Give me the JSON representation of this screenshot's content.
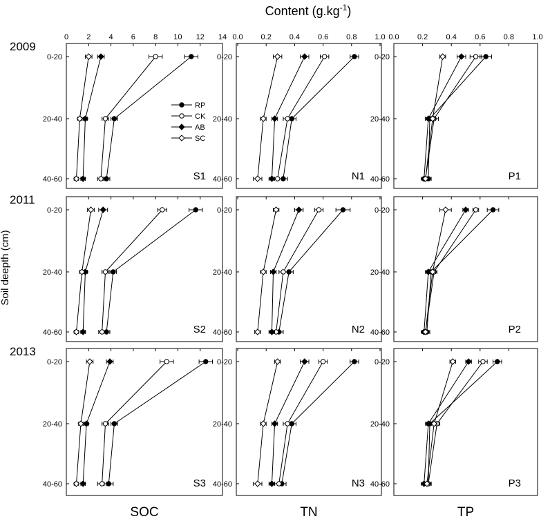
{
  "chart_data": {
    "type": "line",
    "title": "Content (g.kg",
    "title_sup": "-1",
    "ylabel": "Soil deepth (cm)",
    "depths": [
      "0-20",
      "20-40",
      "40-60"
    ],
    "columns": [
      {
        "name": "SOC",
        "xlim": [
          0,
          14
        ],
        "ticks": [
          "0",
          "2",
          "4",
          "6",
          "8",
          "10",
          "12",
          "14"
        ]
      },
      {
        "name": "TN",
        "xlim": [
          0,
          1.0
        ],
        "ticks": [
          "0.0",
          "0.2",
          "0.4",
          "0.6",
          "0.8",
          "1.0"
        ]
      },
      {
        "name": "TP",
        "xlim": [
          0,
          1.0
        ],
        "ticks": [
          "0.0",
          "0.2",
          "0.4",
          "0.6",
          "0.8",
          "1.0"
        ]
      }
    ],
    "years": [
      "2009",
      "2011",
      "2013"
    ],
    "legend": {
      "entries": [
        "RP",
        "CK",
        "AB",
        "SC"
      ],
      "placement": "inside top-right of S1"
    },
    "series_styles": [
      {
        "name": "RP",
        "marker": "circle",
        "fill": "#000000"
      },
      {
        "name": "CK",
        "marker": "circle",
        "fill": "#ffffff"
      },
      {
        "name": "AB",
        "marker": "diamond",
        "fill": "#000000"
      },
      {
        "name": "SC",
        "marker": "diamond",
        "fill": "#ffffff"
      }
    ],
    "panels": [
      {
        "label": "S1",
        "row": 0,
        "col": 0,
        "series": {
          "RP": {
            "x": [
              11.2,
              4.3,
              3.6
            ],
            "err": [
              0.6,
              0.3,
              0.3
            ]
          },
          "CK": {
            "x": [
              8.0,
              3.5,
              3.1
            ],
            "err": [
              0.6,
              0.3,
              0.3
            ]
          },
          "AB": {
            "x": [
              3.1,
              1.7,
              1.5
            ],
            "err": [
              0.3,
              0.2,
              0.2
            ]
          },
          "SC": {
            "x": [
              2.0,
              1.2,
              0.9
            ],
            "err": [
              0.3,
              0.2,
              0.2
            ]
          }
        }
      },
      {
        "label": "N1",
        "row": 0,
        "col": 1,
        "series": {
          "RP": {
            "x": [
              0.82,
              0.38,
              0.32
            ],
            "err": [
              0.03,
              0.03,
              0.03
            ]
          },
          "CK": {
            "x": [
              0.61,
              0.35,
              0.28
            ],
            "err": [
              0.03,
              0.03,
              0.03
            ]
          },
          "AB": {
            "x": [
              0.47,
              0.26,
              0.24
            ],
            "err": [
              0.03,
              0.02,
              0.02
            ]
          },
          "SC": {
            "x": [
              0.28,
              0.18,
              0.14
            ],
            "err": [
              0.03,
              0.02,
              0.03
            ]
          }
        }
      },
      {
        "label": "P1",
        "row": 0,
        "col": 2,
        "series": {
          "RP": {
            "x": [
              0.64,
              0.25,
              0.24
            ],
            "err": [
              0.04,
              0.03,
              0.02
            ]
          },
          "CK": {
            "x": [
              0.57,
              0.28,
              0.22
            ],
            "err": [
              0.04,
              0.03,
              0.02
            ]
          },
          "AB": {
            "x": [
              0.47,
              0.24,
              0.21
            ],
            "err": [
              0.03,
              0.02,
              0.02
            ]
          },
          "SC": {
            "x": [
              0.34,
              0.27,
              0.22
            ],
            "err": [
              0.02,
              0.02,
              0.02
            ]
          }
        }
      },
      {
        "label": "S2",
        "row": 1,
        "col": 0,
        "series": {
          "RP": {
            "x": [
              11.6,
              4.2,
              3.6
            ],
            "err": [
              0.6,
              0.3,
              0.3
            ]
          },
          "CK": {
            "x": [
              8.6,
              3.5,
              3.2
            ],
            "err": [
              0.4,
              0.3,
              0.3
            ]
          },
          "AB": {
            "x": [
              3.3,
              1.7,
              1.5
            ],
            "err": [
              0.4,
              0.2,
              0.2
            ]
          },
          "SC": {
            "x": [
              2.2,
              1.4,
              0.9
            ],
            "err": [
              0.3,
              0.2,
              0.2
            ]
          }
        }
      },
      {
        "label": "N2",
        "row": 1,
        "col": 1,
        "series": {
          "RP": {
            "x": [
              0.74,
              0.36,
              0.29
            ],
            "err": [
              0.05,
              0.03,
              0.03
            ]
          },
          "CK": {
            "x": [
              0.57,
              0.32,
              0.27
            ],
            "err": [
              0.03,
              0.03,
              0.02
            ]
          },
          "AB": {
            "x": [
              0.43,
              0.25,
              0.24
            ],
            "err": [
              0.03,
              0.02,
              0.02
            ]
          },
          "SC": {
            "x": [
              0.27,
              0.18,
              0.14
            ],
            "err": [
              0.02,
              0.02,
              0.02
            ]
          }
        }
      },
      {
        "label": "P2",
        "row": 1,
        "col": 2,
        "series": {
          "RP": {
            "x": [
              0.69,
              0.26,
              0.23
            ],
            "err": [
              0.04,
              0.03,
              0.02
            ]
          },
          "CK": {
            "x": [
              0.57,
              0.28,
              0.22
            ],
            "err": [
              0.02,
              0.02,
              0.02
            ]
          },
          "AB": {
            "x": [
              0.5,
              0.24,
              0.21
            ],
            "err": [
              0.02,
              0.02,
              0.02
            ]
          },
          "SC": {
            "x": [
              0.36,
              0.27,
              0.22
            ],
            "err": [
              0.04,
              0.02,
              0.02
            ]
          }
        }
      },
      {
        "label": "S3",
        "row": 2,
        "col": 0,
        "series": {
          "RP": {
            "x": [
              12.5,
              4.3,
              3.8
            ],
            "err": [
              0.6,
              0.3,
              0.4
            ]
          },
          "CK": {
            "x": [
              9.0,
              3.5,
              3.2
            ],
            "err": [
              0.6,
              0.3,
              0.4
            ]
          },
          "AB": {
            "x": [
              3.9,
              1.8,
              1.5
            ],
            "err": [
              0.3,
              0.2,
              0.2
            ]
          },
          "SC": {
            "x": [
              2.1,
              1.3,
              0.9
            ],
            "err": [
              0.3,
              0.2,
              0.2
            ]
          }
        }
      },
      {
        "label": "N3",
        "row": 2,
        "col": 1,
        "series": {
          "RP": {
            "x": [
              0.82,
              0.38,
              0.31
            ],
            "err": [
              0.03,
              0.03,
              0.03
            ]
          },
          "CK": {
            "x": [
              0.6,
              0.35,
              0.29
            ],
            "err": [
              0.03,
              0.03,
              0.03
            ]
          },
          "AB": {
            "x": [
              0.47,
              0.26,
              0.24
            ],
            "err": [
              0.03,
              0.02,
              0.02
            ]
          },
          "SC": {
            "x": [
              0.28,
              0.18,
              0.14
            ],
            "err": [
              0.02,
              0.02,
              0.03
            ]
          }
        }
      },
      {
        "label": "P3",
        "row": 2,
        "col": 2,
        "series": {
          "RP": {
            "x": [
              0.72,
              0.25,
              0.24
            ],
            "err": [
              0.03,
              0.02,
              0.02
            ]
          },
          "CK": {
            "x": [
              0.62,
              0.3,
              0.24
            ],
            "err": [
              0.03,
              0.02,
              0.02
            ]
          },
          "AB": {
            "x": [
              0.52,
              0.24,
              0.21
            ],
            "err": [
              0.02,
              0.02,
              0.02
            ]
          },
          "SC": {
            "x": [
              0.41,
              0.28,
              0.23
            ],
            "err": [
              0.02,
              0.02,
              0.02
            ]
          }
        }
      }
    ]
  }
}
